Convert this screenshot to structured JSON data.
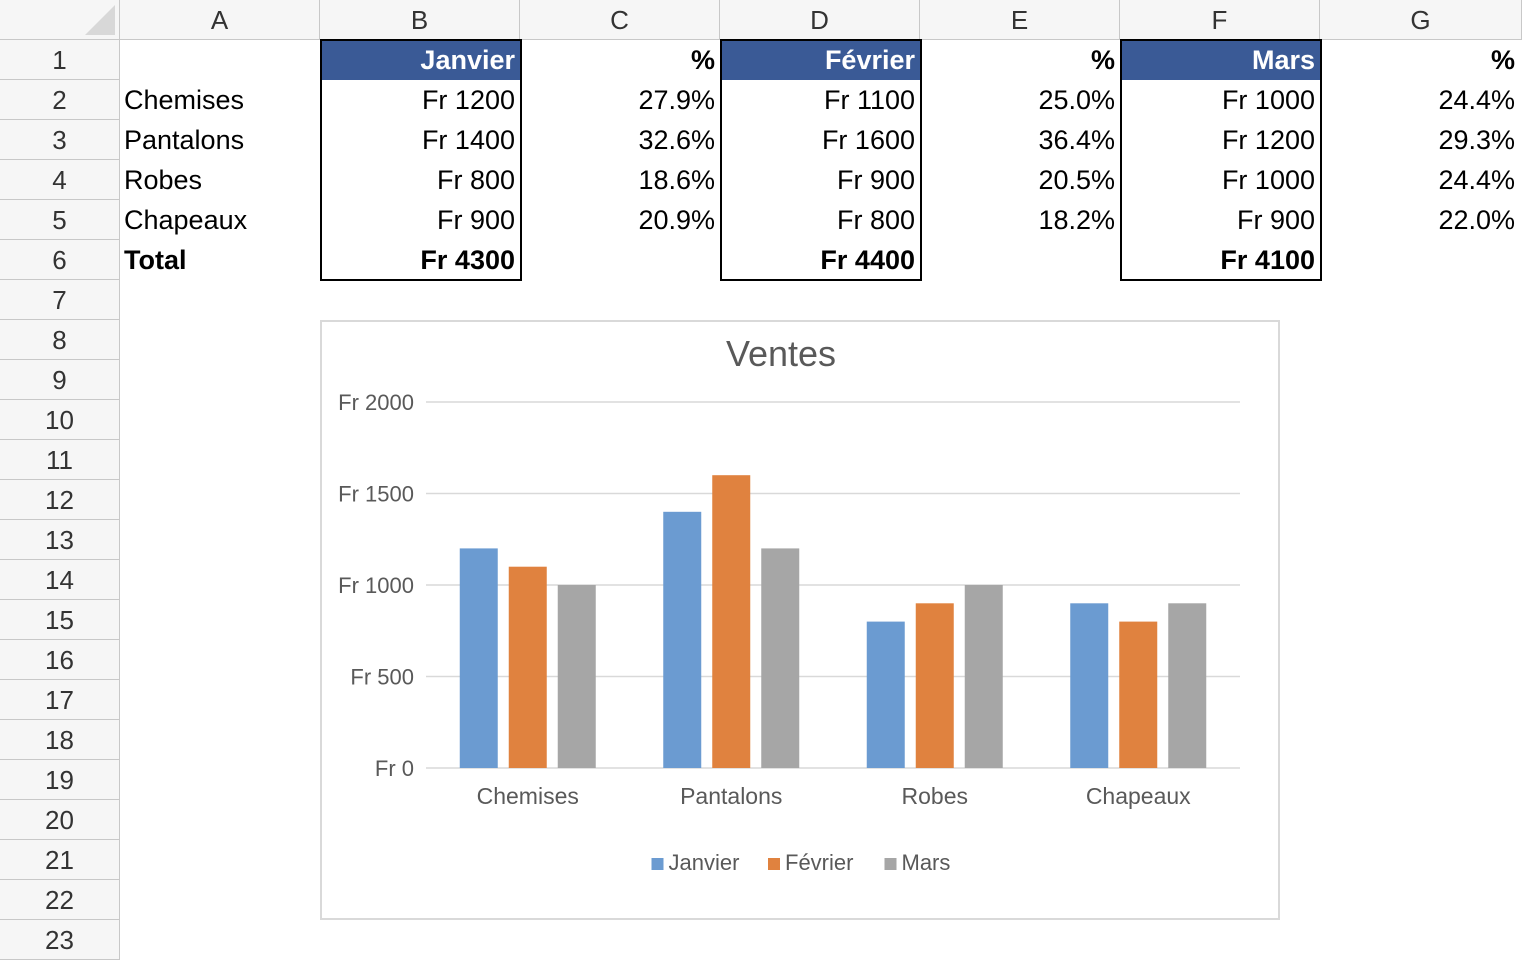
{
  "columns": [
    "A",
    "B",
    "C",
    "D",
    "E",
    "F",
    "G"
  ],
  "rows": [
    "1",
    "2",
    "3",
    "4",
    "5",
    "6",
    "7",
    "8",
    "9",
    "10",
    "11",
    "12",
    "13",
    "14",
    "15",
    "16",
    "17",
    "18",
    "19",
    "20",
    "21",
    "22",
    "23"
  ],
  "table": {
    "months": [
      {
        "name": "Janvier",
        "pct_header": "%"
      },
      {
        "name": "Février",
        "pct_header": "%"
      },
      {
        "name": "Mars",
        "pct_header": "%"
      }
    ],
    "products": [
      {
        "label": "Chemises",
        "values": [
          "Fr 1200",
          "Fr 1100",
          "Fr 1000"
        ],
        "pcts": [
          "27.9%",
          "25.0%",
          "24.4%"
        ]
      },
      {
        "label": "Pantalons",
        "values": [
          "Fr 1400",
          "Fr 1600",
          "Fr 1200"
        ],
        "pcts": [
          "32.6%",
          "36.4%",
          "29.3%"
        ]
      },
      {
        "label": "Robes",
        "values": [
          "Fr 800",
          "Fr 900",
          "Fr 1000"
        ],
        "pcts": [
          "18.6%",
          "20.5%",
          "24.4%"
        ]
      },
      {
        "label": "Chapeaux",
        "values": [
          "Fr 900",
          "Fr 800",
          "Fr 900"
        ],
        "pcts": [
          "20.9%",
          "18.2%",
          "22.0%"
        ]
      }
    ],
    "total_label": "Total",
    "totals": [
      "Fr 4300",
      "Fr 4400",
      "Fr 4100"
    ]
  },
  "colors": {
    "header_bg": "#3a5a96",
    "series": [
      "#6b9bd1",
      "#e0823f",
      "#a6a6a6"
    ],
    "gridline": "#d9d9d9",
    "axis_text": "#595959"
  },
  "chart_data": {
    "type": "bar",
    "title": "Ventes",
    "categories": [
      "Chemises",
      "Pantalons",
      "Robes",
      "Chapeaux"
    ],
    "series": [
      {
        "name": "Janvier",
        "values": [
          1200,
          1400,
          800,
          900
        ]
      },
      {
        "name": "Février",
        "values": [
          1100,
          1600,
          900,
          800
        ]
      },
      {
        "name": "Mars",
        "values": [
          1000,
          1200,
          1000,
          900
        ]
      }
    ],
    "ylim": [
      0,
      2000
    ],
    "yticks": [
      0,
      500,
      1000,
      1500,
      2000
    ],
    "ytick_labels": [
      "Fr 0",
      "Fr 500",
      "Fr 1000",
      "Fr 1500",
      "Fr 2000"
    ],
    "grid": true,
    "legend": "bottom"
  }
}
